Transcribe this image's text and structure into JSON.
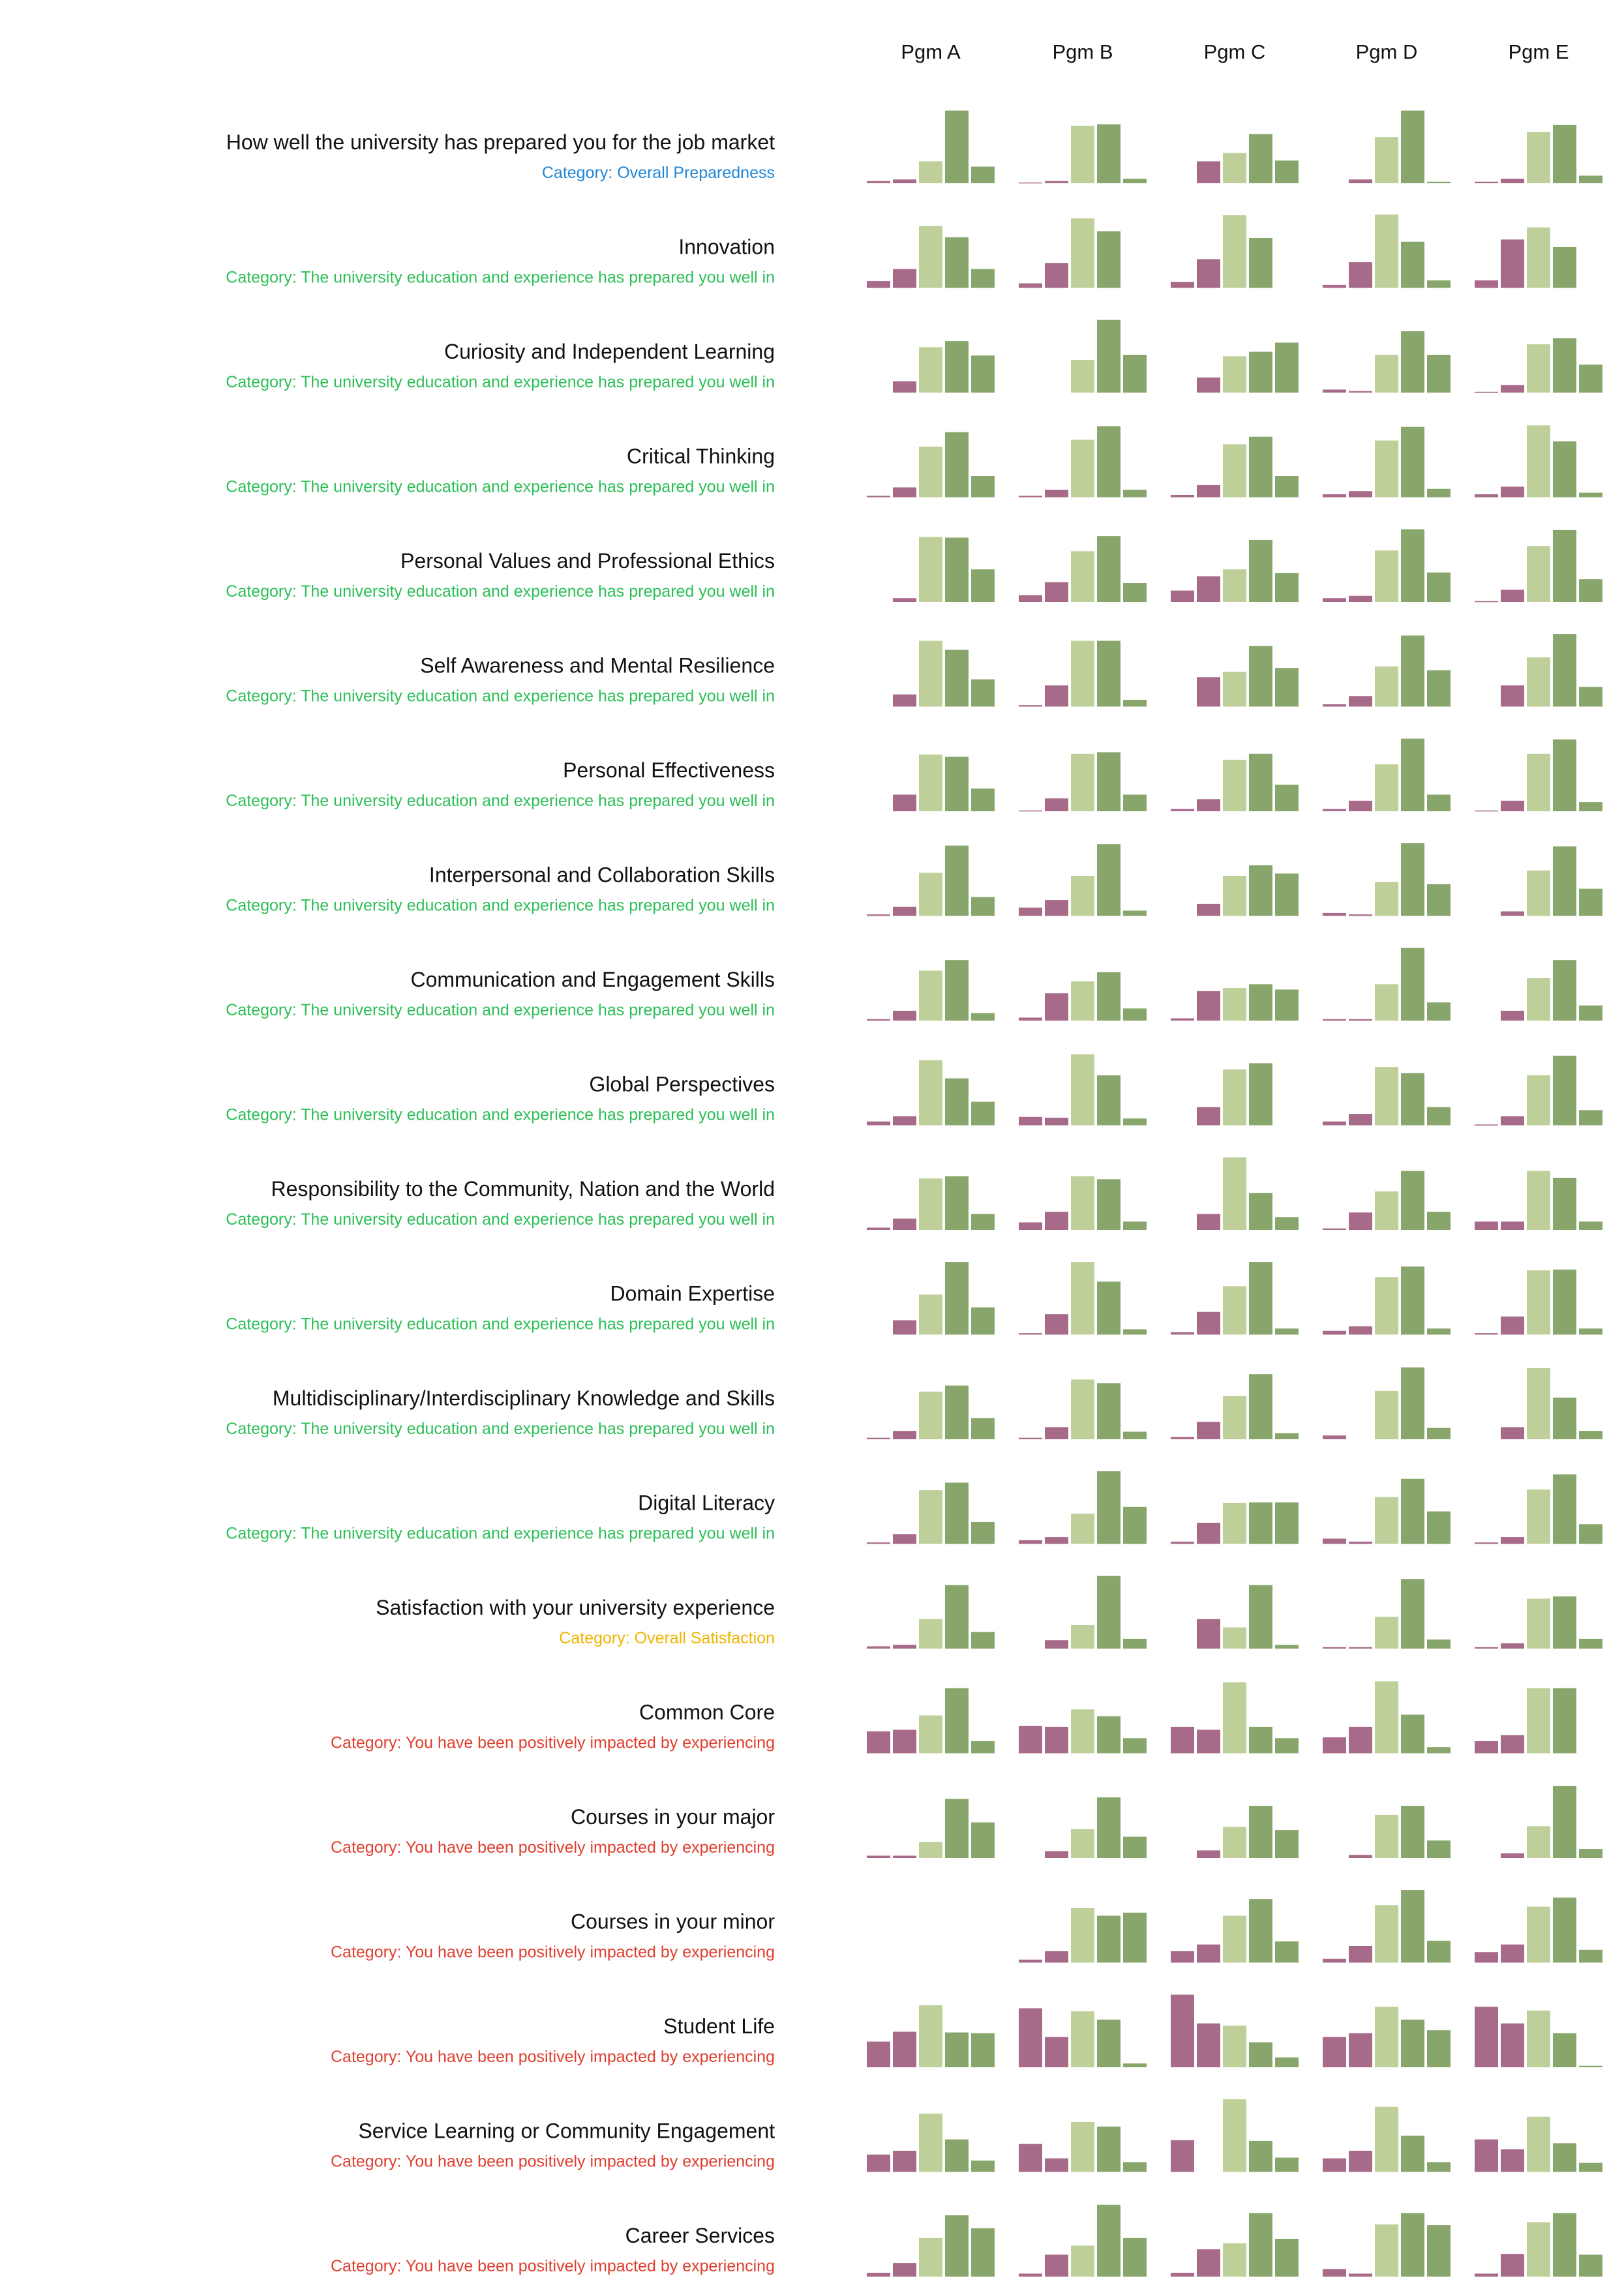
{
  "chart_data": {
    "type": "bar",
    "subtype": "small-multiples",
    "programs": [
      "Pgm A",
      "Pgm B",
      "Pgm C",
      "Pgm D",
      "Pgm E"
    ],
    "bins": 5,
    "colors": {
      "low": "#a76a88",
      "mid": "#bfcf99",
      "high": "#88a56b"
    },
    "category_colors": {
      "Overall Preparedness": "#1f86d6",
      "The university education and experience has prepared you well in": "#2bbf57",
      "Overall Satisfaction": "#f0b400",
      "You have been positively impacted by experiencing": "#e03e2e"
    },
    "rows": [
      {
        "title": "How well the university has prepared you for the job market",
        "category_label": "Category: Overall Preparedness",
        "category": "Overall Preparedness",
        "values": [
          [
            3,
            5,
            29,
            96,
            22
          ],
          [
            1,
            3,
            76,
            78,
            6
          ],
          [
            0,
            29,
            40,
            65,
            30
          ],
          [
            0,
            5,
            61,
            96,
            2
          ],
          [
            2,
            6,
            68,
            77,
            10
          ]
        ]
      },
      {
        "title": "Innovation",
        "category_label": "Category: The university education and experience has prepared you well in",
        "category": "The university education and experience has prepared you well in",
        "values": [
          [
            9,
            25,
            82,
            67,
            25
          ],
          [
            6,
            33,
            92,
            75,
            0
          ],
          [
            8,
            38,
            96,
            66,
            0
          ],
          [
            4,
            34,
            97,
            61,
            10
          ],
          [
            10,
            64,
            80,
            54,
            0
          ]
        ]
      },
      {
        "title": "Curiosity and Independent Learning",
        "category_label": "Category: The university education and experience has prepared you well in",
        "category": "The university education and experience has prepared you well in",
        "values": [
          [
            0,
            15,
            60,
            68,
            49
          ],
          [
            0,
            0,
            43,
            96,
            50
          ],
          [
            0,
            20,
            48,
            54,
            66
          ],
          [
            4,
            2,
            50,
            81,
            50
          ],
          [
            1,
            10,
            64,
            72,
            37
          ]
        ]
      },
      {
        "title": "Critical Thinking",
        "category_label": "Category: The university education and experience has prepared you well in",
        "category": "The university education and experience has prepared you well in",
        "values": [
          [
            2,
            13,
            67,
            86,
            28
          ],
          [
            2,
            10,
            76,
            94,
            10
          ],
          [
            3,
            16,
            70,
            80,
            28
          ],
          [
            4,
            8,
            75,
            93,
            11
          ],
          [
            4,
            14,
            95,
            74,
            6
          ]
        ]
      },
      {
        "title": "Personal Values and Professional Ethics",
        "category_label": "Category: The university education and experience has prepared you well in",
        "category": "The university education and experience has prepared you well in",
        "values": [
          [
            0,
            5,
            86,
            85,
            43
          ],
          [
            9,
            26,
            67,
            87,
            25
          ],
          [
            15,
            34,
            43,
            82,
            38
          ],
          [
            5,
            8,
            68,
            96,
            39
          ],
          [
            1,
            16,
            74,
            95,
            30
          ]
        ]
      },
      {
        "title": "Self Awareness and Mental Resilience",
        "category_label": "Category: The university education and experience has prepared you well in",
        "category": "The university education and experience has prepared you well in",
        "values": [
          [
            0,
            16,
            87,
            75,
            36
          ],
          [
            2,
            28,
            87,
            87,
            9
          ],
          [
            0,
            39,
            46,
            80,
            51
          ],
          [
            3,
            14,
            53,
            94,
            48
          ],
          [
            0,
            28,
            65,
            96,
            26
          ]
        ]
      },
      {
        "title": "Personal Effectiveness",
        "category_label": "Category: The university education and experience has prepared you well in",
        "category": "The university education and experience has prepared you well in",
        "values": [
          [
            0,
            22,
            75,
            72,
            30
          ],
          [
            1,
            17,
            76,
            78,
            22
          ],
          [
            3,
            16,
            68,
            76,
            35
          ],
          [
            3,
            14,
            62,
            96,
            22
          ],
          [
            1,
            14,
            76,
            95,
            12
          ]
        ]
      },
      {
        "title": "Interpersonal and Collaboration Skills",
        "category_label": "Category: The university education and experience has prepared you well in",
        "category": "The university education and experience has prepared you well in",
        "values": [
          [
            2,
            12,
            57,
            93,
            25
          ],
          [
            11,
            21,
            53,
            95,
            7
          ],
          [
            0,
            16,
            53,
            67,
            56
          ],
          [
            4,
            2,
            45,
            96,
            42
          ],
          [
            0,
            6,
            60,
            92,
            36
          ]
        ]
      },
      {
        "title": "Communication and Engagement Skills",
        "category_label": "Category: The university education and experience has prepared you well in",
        "category": "The university education and experience has prepared you well in",
        "values": [
          [
            2,
            13,
            66,
            80,
            10
          ],
          [
            4,
            36,
            52,
            64,
            16
          ],
          [
            3,
            39,
            43,
            48,
            41
          ],
          [
            2,
            2,
            48,
            96,
            24
          ],
          [
            0,
            13,
            56,
            80,
            20
          ]
        ]
      },
      {
        "title": "Global Perspectives",
        "category_label": "Category: The university education and experience has prepared you well in",
        "category": "The university education and experience has prepared you well in",
        "values": [
          [
            5,
            12,
            86,
            62,
            31
          ],
          [
            11,
            10,
            94,
            66,
            9
          ],
          [
            0,
            24,
            74,
            82,
            0
          ],
          [
            5,
            15,
            77,
            69,
            24
          ],
          [
            1,
            12,
            66,
            92,
            20
          ]
        ]
      },
      {
        "title": "Responsibility to the Community, Nation and the World",
        "category_label": "Category: The university education and experience has prepared you well in",
        "category": "The university education and experience has prepared you well in",
        "values": [
          [
            3,
            15,
            68,
            71,
            21
          ],
          [
            10,
            24,
            71,
            67,
            11
          ],
          [
            0,
            21,
            96,
            49,
            17
          ],
          [
            2,
            23,
            51,
            78,
            24
          ],
          [
            11,
            11,
            78,
            69,
            11
          ]
        ]
      },
      {
        "title": "Domain Expertise",
        "category_label": "Category: The university education and experience has prepared you well in",
        "category": "The university education and experience has prepared you well in",
        "values": [
          [
            0,
            19,
            53,
            96,
            36
          ],
          [
            2,
            27,
            96,
            70,
            7
          ],
          [
            3,
            30,
            64,
            96,
            8
          ],
          [
            5,
            11,
            76,
            90,
            8
          ],
          [
            2,
            24,
            85,
            86,
            8
          ]
        ]
      },
      {
        "title": "Multidisciplinary/Interdisciplinary Knowledge and Skills",
        "category_label": "Category: The university education and experience has prepared you well in",
        "category": "The university education and experience has prepared you well in",
        "values": [
          [
            2,
            11,
            63,
            71,
            28
          ],
          [
            2,
            16,
            79,
            74,
            10
          ],
          [
            3,
            23,
            57,
            86,
            8
          ],
          [
            5,
            0,
            64,
            95,
            15
          ],
          [
            0,
            16,
            94,
            55,
            11
          ]
        ]
      },
      {
        "title": "Digital Literacy",
        "category_label": "Category: The university education and experience has prepared you well in",
        "category": "The university education and experience has prepared you well in",
        "values": [
          [
            2,
            13,
            71,
            81,
            29
          ],
          [
            5,
            9,
            40,
            96,
            49
          ],
          [
            3,
            28,
            54,
            55,
            55
          ],
          [
            7,
            3,
            62,
            86,
            43
          ],
          [
            2,
            9,
            72,
            92,
            26
          ]
        ]
      },
      {
        "title": "Satisfaction with your university experience",
        "category_label": "Category: Overall Satisfaction",
        "category": "Overall Satisfaction",
        "values": [
          [
            3,
            5,
            39,
            84,
            22
          ],
          [
            0,
            11,
            31,
            96,
            13
          ],
          [
            0,
            39,
            28,
            84,
            5
          ],
          [
            2,
            2,
            42,
            92,
            12
          ],
          [
            2,
            7,
            66,
            69,
            13
          ]
        ]
      },
      {
        "title": "Common Core",
        "category_label": "Category: You have been positively impacted by experiencing",
        "category": "You have been positively impacted by experiencing",
        "values": [
          [
            29,
            31,
            50,
            86,
            16
          ],
          [
            36,
            35,
            58,
            49,
            20
          ],
          [
            35,
            31,
            94,
            35,
            20
          ],
          [
            21,
            35,
            95,
            51,
            8
          ],
          [
            16,
            24,
            86,
            86,
            0
          ]
        ]
      },
      {
        "title": "Courses in your major",
        "category_label": "Category: You have been positively impacted by experiencing",
        "category": "You have been positively impacted by experiencing",
        "values": [
          [
            3,
            3,
            21,
            78,
            47
          ],
          [
            0,
            9,
            38,
            80,
            28
          ],
          [
            0,
            10,
            41,
            69,
            37
          ],
          [
            0,
            4,
            57,
            69,
            23
          ],
          [
            0,
            6,
            42,
            95,
            12
          ]
        ]
      },
      {
        "title": "Courses in your minor",
        "category_label": "Category: You have been positively impacted by experiencing",
        "category": "You have been positively impacted by experiencing",
        "values": [
          [
            0,
            0,
            0,
            0,
            0
          ],
          [
            4,
            15,
            72,
            62,
            66
          ],
          [
            15,
            24,
            62,
            84,
            28
          ],
          [
            5,
            22,
            76,
            96,
            29
          ],
          [
            14,
            24,
            74,
            86,
            17
          ]
        ]
      },
      {
        "title": "Student Life",
        "category_label": "Category: You have been positively impacted by experiencing",
        "category": "You have been positively impacted by experiencing",
        "values": [
          [
            34,
            47,
            82,
            46,
            45
          ],
          [
            78,
            40,
            74,
            63,
            5
          ],
          [
            96,
            58,
            55,
            33,
            13
          ],
          [
            40,
            45,
            80,
            63,
            49
          ],
          [
            80,
            58,
            75,
            45,
            2
          ]
        ]
      },
      {
        "title": "Service Learning or Community Engagement",
        "category_label": "Category: You have been positively impacted by experiencing",
        "category": "You have been positively impacted by experiencing",
        "values": [
          [
            23,
            28,
            77,
            43,
            15
          ],
          [
            37,
            18,
            66,
            60,
            13
          ],
          [
            42,
            0,
            96,
            41,
            19
          ],
          [
            18,
            28,
            86,
            48,
            13
          ],
          [
            43,
            30,
            73,
            38,
            12
          ]
        ]
      },
      {
        "title": "Career Services",
        "category_label": "Category: You have been positively impacted by experiencing",
        "category": "You have been positively impacted by experiencing",
        "values": [
          [
            5,
            18,
            51,
            81,
            64
          ],
          [
            4,
            29,
            41,
            95,
            51
          ],
          [
            5,
            36,
            44,
            84,
            50
          ],
          [
            10,
            4,
            69,
            84,
            68
          ],
          [
            4,
            30,
            72,
            84,
            29
          ]
        ]
      }
    ]
  }
}
